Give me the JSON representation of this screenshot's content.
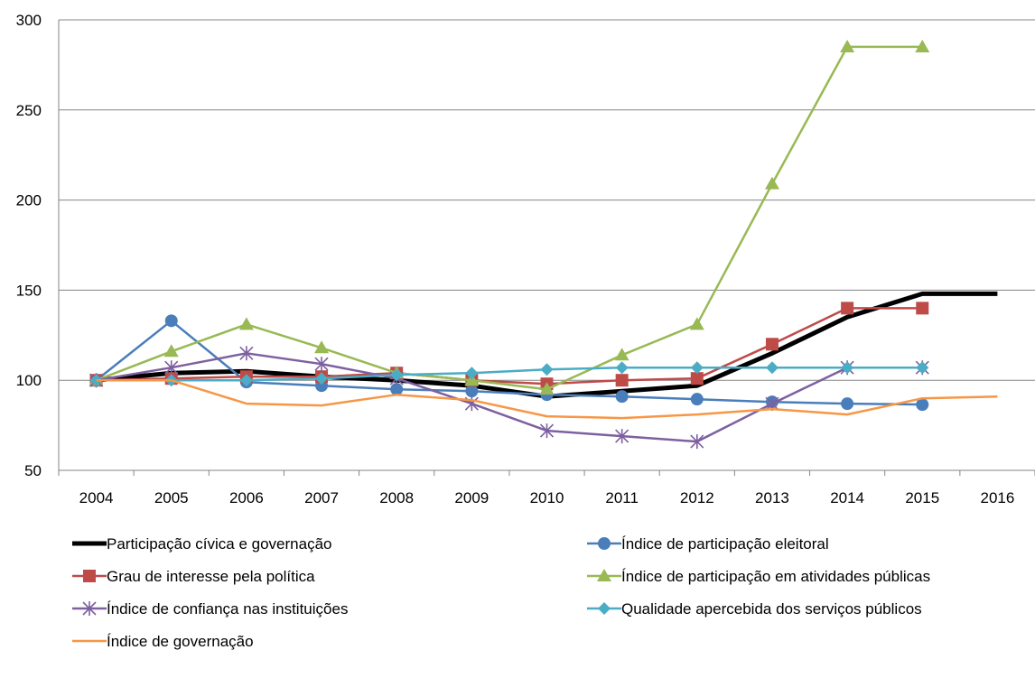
{
  "chart_data": {
    "type": "line",
    "title": "",
    "xlabel": "",
    "ylabel": "",
    "ylim": [
      50,
      300
    ],
    "yticks": [
      50,
      100,
      150,
      200,
      250,
      300
    ],
    "categories": [
      "2004",
      "2005",
      "2006",
      "2007",
      "2008",
      "2009",
      "2010",
      "2011",
      "2012",
      "2013",
      "2014",
      "2015",
      "2016"
    ],
    "grid": "horizontal",
    "legend_position": "bottom",
    "series": [
      {
        "name": "Participação cívica e governação",
        "color": "#000000",
        "marker": "none",
        "width": 5,
        "values": [
          100,
          104,
          105,
          102,
          100,
          97,
          91,
          94,
          97,
          115,
          135,
          148,
          148
        ]
      },
      {
        "name": "Índice de participação eleitoral",
        "color": "#4a7ebb",
        "marker": "circle",
        "width": 2.5,
        "values": [
          100,
          133,
          99,
          97,
          95,
          94,
          92,
          91,
          89.5,
          88,
          87,
          86.5,
          null
        ]
      },
      {
        "name": "Grau de interesse pela política",
        "color": "#be4b48",
        "marker": "square",
        "width": 2.5,
        "values": [
          100,
          101,
          102,
          102,
          104,
          100,
          98,
          100,
          101,
          120,
          140,
          140,
          null
        ]
      },
      {
        "name": "Índice de participação em atividades públicas",
        "color": "#98b954",
        "marker": "triangle",
        "width": 2.5,
        "values": [
          100,
          116,
          131,
          118,
          104,
          100,
          95,
          114,
          131,
          209,
          285,
          285,
          null
        ]
      },
      {
        "name": "Índice de confiança nas instituições",
        "color": "#7d60a0",
        "marker": "star",
        "width": 2.5,
        "values": [
          100,
          107,
          115,
          109,
          101,
          87,
          72,
          69,
          66,
          87,
          107,
          107,
          null
        ]
      },
      {
        "name": "Qualidade apercebida dos serviços públicos",
        "color": "#4bacc6",
        "marker": "diamond",
        "width": 2.5,
        "values": [
          100,
          100,
          100,
          101,
          103,
          104,
          106,
          107,
          107,
          107,
          107,
          107,
          null
        ]
      },
      {
        "name": "Índice de governação",
        "color": "#f79646",
        "marker": "none",
        "width": 2.5,
        "values": [
          100,
          100,
          87,
          86,
          92,
          89,
          80,
          79,
          81,
          84,
          81,
          90,
          91
        ]
      }
    ]
  }
}
